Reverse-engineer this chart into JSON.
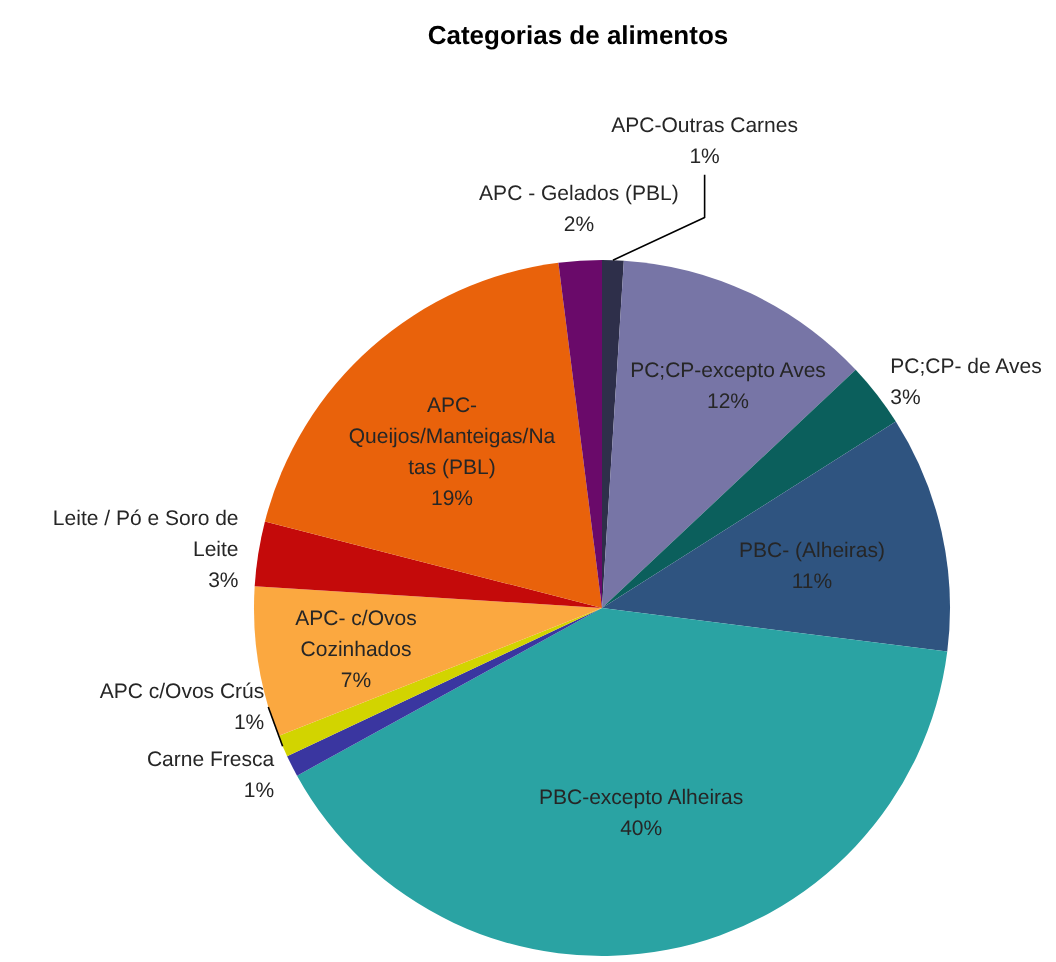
{
  "chart_data": {
    "type": "pie",
    "title": "Categorias de alimentos",
    "categories": [
      "APC-Outras Carnes",
      "PC;CP-excepto Aves",
      "PC;CP- de Aves",
      "PBC- (Alheiras)",
      "PBC-excepto Alheiras",
      "Carne Fresca",
      "APC c/Ovos Crús",
      "APC- c/Ovos Cozinhados",
      "Leite / Pó e Soro de Leite",
      "APC-Queijos/Manteigas/Natas (PBL)",
      "APC - Gelados (PBL)"
    ],
    "values": [
      1,
      12,
      3,
      11,
      40,
      1,
      1,
      7,
      3,
      19,
      2
    ],
    "value_labels": [
      "1%",
      "12%",
      "3%",
      "11%",
      "40%",
      "1%",
      "1%",
      "7%",
      "3%",
      "19%",
      "2%"
    ],
    "colors": [
      "#2e2f4a",
      "#7775a6",
      "#0b5f5c",
      "#2f5480",
      "#2aa3a3",
      "#3a36a0",
      "#d2d400",
      "#fba840",
      "#c40a0a",
      "#e9620b",
      "#6a0a6a"
    ]
  }
}
